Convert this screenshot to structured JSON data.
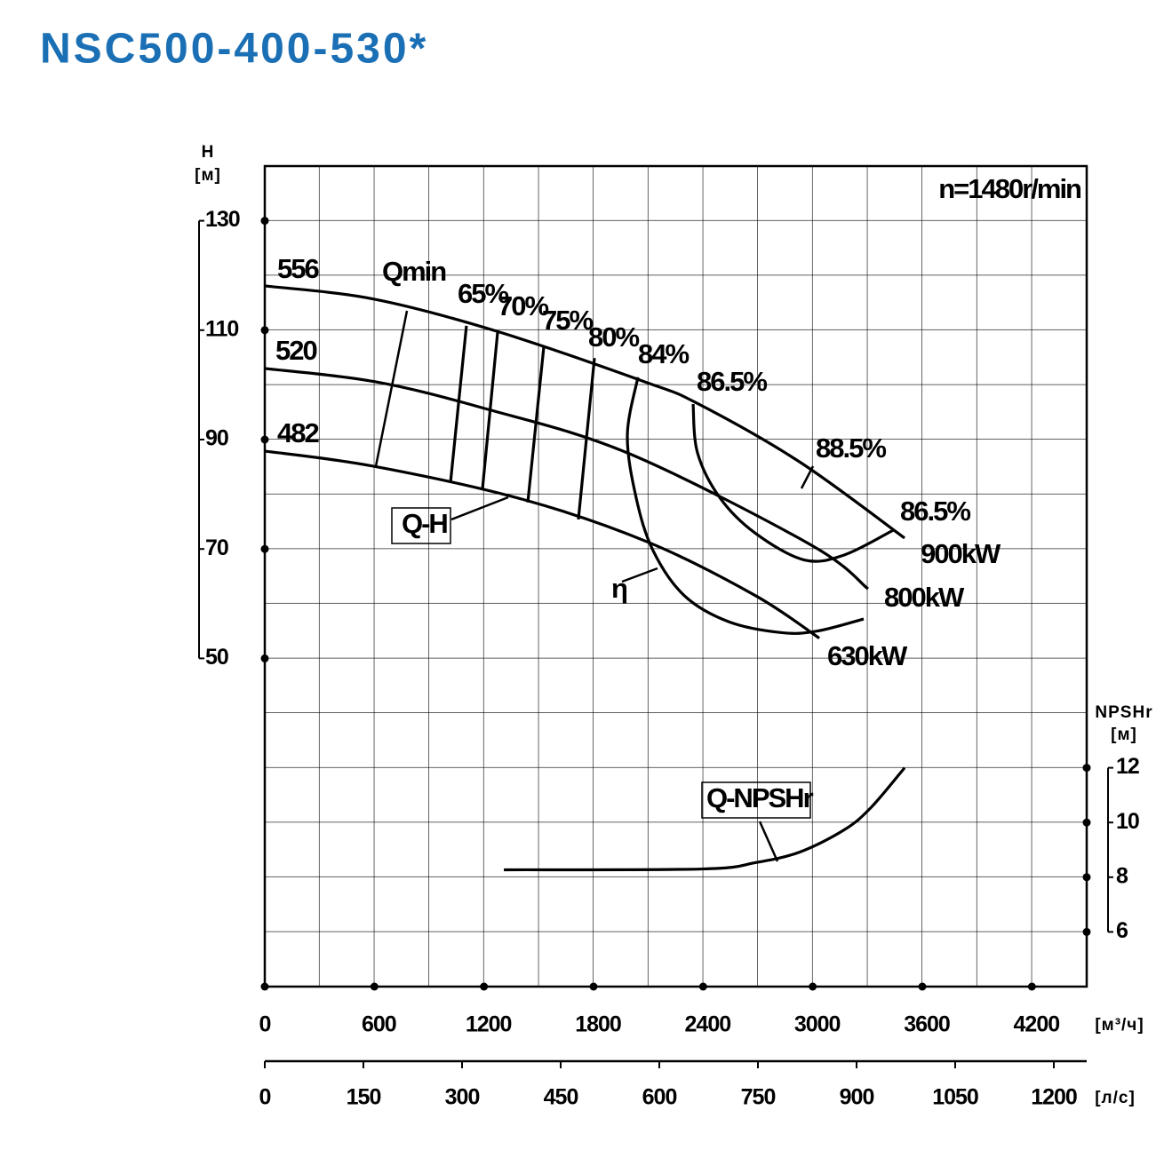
{
  "chart_data": {
    "type": "line",
    "title": "NSC500-400-530*",
    "speed_label": "n=1480r/min",
    "y_label": "H",
    "y_unit": "[м]",
    "y2_label": "NPSHr",
    "y2_unit": "[м]",
    "x_unit": "[м³/ч]",
    "x2_unit": "[л/с]",
    "xlim": [
      0,
      4500
    ],
    "xticks": [
      0,
      600,
      1200,
      1800,
      2400,
      3000,
      3600,
      4200
    ],
    "x2lim": [
      0,
      1250
    ],
    "x2ticks": [
      0,
      150,
      300,
      450,
      600,
      750,
      900,
      1050,
      1200
    ],
    "ylim": [
      -10,
      140
    ],
    "yticks": [
      50,
      70,
      90,
      110,
      130
    ],
    "y2lim": [
      4,
      34
    ],
    "y2ticks": [
      6,
      8,
      10,
      12
    ],
    "grid": true,
    "series": [
      {
        "name": "556",
        "color": "#000000",
        "x": [
          0,
          594,
          1270,
          2077,
          2369,
          2929,
          3503
        ],
        "y": [
          118.1,
          115.7,
          109.8,
          100.6,
          96.6,
          85.9,
          72
        ]
      },
      {
        "name": "520",
        "color": "#000000",
        "x": [
          0,
          600,
          1202,
          1990,
          2987,
          3303
        ],
        "y": [
          103,
          100.6,
          95.7,
          87.5,
          70.8,
          62.7
        ]
      },
      {
        "name": "482",
        "color": "#000000",
        "x": [
          0,
          600,
          1420,
          2102,
          2685,
          3036
        ],
        "y": [
          87.9,
          85.1,
          79,
          71.2,
          61.5,
          53.7
        ]
      },
      {
        "name": "65%",
        "color": "#000000",
        "x": [
          1104,
          1017
        ],
        "y": [
          110.8,
          82.2
        ]
      },
      {
        "name": "70%",
        "color": "#000000",
        "x": [
          1275,
          1192
        ],
        "y": [
          109.7,
          81
        ]
      },
      {
        "name": "75%",
        "color": "#000000",
        "x": [
          1528,
          1440
        ],
        "y": [
          107.1,
          78.5
        ]
      },
      {
        "name": "80%",
        "color": "#000000",
        "x": [
          1805,
          1717
        ],
        "y": [
          104.9,
          75.4
        ]
      },
      {
        "name": "84%",
        "color": "#000000",
        "x": [
          2043,
          1985,
          2033,
          2126,
          2296,
          2540,
          2831,
          3026,
          3279
        ],
        "y": [
          101.4,
          90.8,
          79.4,
          69.7,
          61.5,
          56.7,
          54.7,
          55,
          57.2
        ]
      },
      {
        "name": "86.5%",
        "color": "#000000",
        "x": [
          2345,
          2369,
          2491,
          2685,
          2953,
          3172,
          3439
        ],
        "y": [
          96.5,
          87.6,
          79.4,
          72.9,
          68,
          68.9,
          73.4
        ]
      },
      {
        "name": "Q-NPSHr",
        "color": "#000000",
        "axis": "y2",
        "x": [
          1309,
          2393,
          2685,
          2929,
          3172,
          3318,
          3503
        ],
        "y": [
          8.27,
          8.3,
          8.53,
          8.92,
          9.73,
          10.54,
          12
        ]
      }
    ],
    "annotations": [
      "Qmin",
      "Q-H",
      "η",
      "88.5%",
      "86.5%",
      "900kW",
      "800kW",
      "630kW"
    ]
  }
}
